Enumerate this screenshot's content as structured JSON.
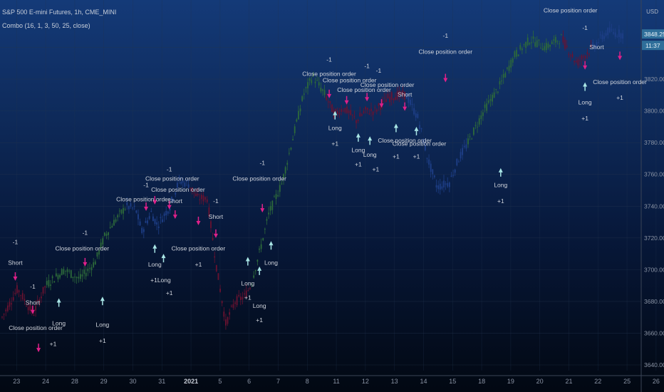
{
  "header": {
    "symbol_line": "S&P 500 E-mini Futures, 1h, CME_MINI",
    "study_line": "Combo (16, 1, 3, 50, 25, close)",
    "currency": "USD"
  },
  "price_badges": {
    "last_price": "3848.25",
    "countdown": "11:37"
  },
  "colors": {
    "bg_top": "#143a78",
    "bg_bottom": "#020812",
    "long_signal": "#a9e6e6",
    "short_signal": "#e0208a",
    "close_signal": "#e0208a",
    "candle_green": "#2d6a3a",
    "candle_blue": "#1e3f88",
    "candle_red": "#6a1230",
    "badge": "#2f6f9a"
  },
  "chart_data": {
    "type": "candlestick",
    "title": "S&P 500 E-mini Futures, 1h, CME_MINI",
    "ylim": [
      3640,
      3860
    ],
    "y_ticks": [
      "3640.00",
      "3660.00",
      "3680.00",
      "3700.00",
      "3720.00",
      "3740.00",
      "3760.00",
      "3780.00",
      "3800.00",
      "3820.00",
      "3840.00"
    ],
    "x_labels": [
      "23",
      "24",
      "28",
      "29",
      "30",
      "31",
      "2021",
      "5",
      "6",
      "7",
      "8",
      "11",
      "12",
      "13",
      "14",
      "15",
      "18",
      "19",
      "20",
      "21",
      "22",
      "25",
      "26"
    ],
    "bold_x_label": "2021",
    "grid": true,
    "price_path": [
      [
        0,
        3670
      ],
      [
        0.5,
        3688
      ],
      [
        1,
        3672
      ],
      [
        1.4,
        3690
      ],
      [
        2,
        3700
      ],
      [
        2.5,
        3694
      ],
      [
        3,
        3705
      ],
      [
        3.3,
        3721
      ],
      [
        3.6,
        3730
      ],
      [
        4,
        3740
      ],
      [
        4.3,
        3738
      ],
      [
        4.5,
        3724
      ],
      [
        4.8,
        3736
      ],
      [
        5,
        3728
      ],
      [
        5.4,
        3740
      ],
      [
        5.7,
        3756
      ],
      [
        6,
        3754
      ],
      [
        6.3,
        3745
      ],
      [
        6.6,
        3745
      ],
      [
        6.9,
        3702
      ],
      [
        7.2,
        3666
      ],
      [
        7.5,
        3680
      ],
      [
        7.8,
        3683
      ],
      [
        8,
        3690
      ],
      [
        8.3,
        3712
      ],
      [
        8.6,
        3736
      ],
      [
        9,
        3754
      ],
      [
        9.4,
        3786
      ],
      [
        9.7,
        3810
      ],
      [
        10,
        3822
      ],
      [
        10.4,
        3810
      ],
      [
        10.7,
        3798
      ],
      [
        11,
        3802
      ],
      [
        11.4,
        3794
      ],
      [
        11.7,
        3800
      ],
      [
        12,
        3800
      ],
      [
        12.4,
        3808
      ],
      [
        12.7,
        3810
      ],
      [
        13,
        3810
      ],
      [
        13.4,
        3795
      ],
      [
        13.7,
        3770
      ],
      [
        14,
        3752
      ],
      [
        14.4,
        3755
      ],
      [
        14.7,
        3770
      ],
      [
        15,
        3780
      ],
      [
        15.5,
        3800
      ],
      [
        16,
        3815
      ],
      [
        16.5,
        3835
      ],
      [
        17,
        3845
      ],
      [
        17.5,
        3840
      ],
      [
        18,
        3846
      ],
      [
        18.5,
        3830
      ],
      [
        19,
        3840
      ],
      [
        19.5,
        3850
      ],
      [
        20,
        3848.25
      ]
    ],
    "segment_colors": [
      {
        "from": 0,
        "to": 1.4,
        "color": "red"
      },
      {
        "from": 1.4,
        "to": 4,
        "color": "green"
      },
      {
        "from": 4,
        "to": 6,
        "color": "blue"
      },
      {
        "from": 6,
        "to": 8,
        "color": "red"
      },
      {
        "from": 8,
        "to": 10.4,
        "color": "green"
      },
      {
        "from": 10.4,
        "to": 13,
        "color": "red"
      },
      {
        "from": 13,
        "to": 15,
        "color": "blue"
      },
      {
        "from": 15,
        "to": 18,
        "color": "green"
      },
      {
        "from": 18,
        "to": 19,
        "color": "red"
      },
      {
        "from": 19,
        "to": 20,
        "color": "blue"
      }
    ],
    "annotations": [
      {
        "text": "-1",
        "x": 0.2,
        "price": 3716,
        "kind": "short"
      },
      {
        "text": "Short",
        "x": 0.2,
        "price": 3703,
        "kind": "short"
      },
      {
        "text": "-1",
        "x": 0.8,
        "price": 3688,
        "kind": "short"
      },
      {
        "text": "Short",
        "x": 0.8,
        "price": 3678,
        "kind": "short"
      },
      {
        "text": "Close position order",
        "x": 0.9,
        "price": 3662,
        "kind": "close"
      },
      {
        "text": "+1",
        "x": 1.5,
        "price": 3652,
        "kind": "close"
      },
      {
        "text": "Long",
        "x": 1.7,
        "price": 3665,
        "kind": "long"
      },
      {
        "text": "-1",
        "x": 2.6,
        "price": 3722,
        "kind": "short"
      },
      {
        "text": "Close position order",
        "x": 2.5,
        "price": 3712,
        "kind": "close"
      },
      {
        "text": "Long",
        "x": 3.2,
        "price": 3664,
        "kind": "long"
      },
      {
        "text": "+1",
        "x": 3.2,
        "price": 3654,
        "kind": "long"
      },
      {
        "text": "-1",
        "x": 4.7,
        "price": 3752,
        "kind": "short"
      },
      {
        "text": "Close position order",
        "x": 4.6,
        "price": 3743,
        "kind": "close"
      },
      {
        "text": "-1",
        "x": 5.5,
        "price": 3762,
        "kind": "short"
      },
      {
        "text": "Close position order",
        "x": 5.6,
        "price": 3756,
        "kind": "close"
      },
      {
        "text": "Close position order",
        "x": 5.8,
        "price": 3749,
        "kind": "close"
      },
      {
        "text": "Short",
        "x": 5.7,
        "price": 3742,
        "kind": "short"
      },
      {
        "text": "Long",
        "x": 5.0,
        "price": 3702,
        "kind": "long"
      },
      {
        "text": "+1Long",
        "x": 5.2,
        "price": 3692,
        "kind": "long"
      },
      {
        "text": "+1",
        "x": 5.5,
        "price": 3684,
        "kind": "long"
      },
      {
        "text": "Close position order",
        "x": 6.5,
        "price": 3712,
        "kind": "close"
      },
      {
        "text": "+1",
        "x": 6.5,
        "price": 3702,
        "kind": "close"
      },
      {
        "text": "-1",
        "x": 7.1,
        "price": 3742,
        "kind": "short"
      },
      {
        "text": "Short",
        "x": 7.1,
        "price": 3732,
        "kind": "short"
      },
      {
        "text": "-1",
        "x": 8.7,
        "price": 3766,
        "kind": "short"
      },
      {
        "text": "Close position order",
        "x": 8.6,
        "price": 3756,
        "kind": "close"
      },
      {
        "text": "Long",
        "x": 8.2,
        "price": 3690,
        "kind": "long"
      },
      {
        "text": "+1",
        "x": 8.2,
        "price": 3681,
        "kind": "long"
      },
      {
        "text": "Long",
        "x": 8.6,
        "price": 3676,
        "kind": "long"
      },
      {
        "text": "+1",
        "x": 8.6,
        "price": 3667,
        "kind": "long"
      },
      {
        "text": "Long",
        "x": 9.0,
        "price": 3703,
        "kind": "long"
      },
      {
        "text": "-1",
        "x": 11.0,
        "price": 3831,
        "kind": "short"
      },
      {
        "text": "Close position order",
        "x": 11.0,
        "price": 3822,
        "kind": "close"
      },
      {
        "text": "Close position order",
        "x": 11.7,
        "price": 3818,
        "kind": "close"
      },
      {
        "text": "-1",
        "x": 12.3,
        "price": 3827,
        "kind": "short"
      },
      {
        "text": "-1",
        "x": 12.7,
        "price": 3824,
        "kind": "short"
      },
      {
        "text": "Close position order",
        "x": 12.2,
        "price": 3812,
        "kind": "close"
      },
      {
        "text": "Close position order",
        "x": 13.0,
        "price": 3815,
        "kind": "close"
      },
      {
        "text": "Short",
        "x": 13.6,
        "price": 3809,
        "kind": "short"
      },
      {
        "text": "-1",
        "x": 15.0,
        "price": 3846,
        "kind": "short"
      },
      {
        "text": "Close position order",
        "x": 15.0,
        "price": 3836,
        "kind": "close"
      },
      {
        "text": "Long",
        "x": 11.2,
        "price": 3788,
        "kind": "long"
      },
      {
        "text": "+1",
        "x": 11.2,
        "price": 3778,
        "kind": "long"
      },
      {
        "text": "Long",
        "x": 12.0,
        "price": 3774,
        "kind": "long"
      },
      {
        "text": "+1",
        "x": 12.0,
        "price": 3765,
        "kind": "long"
      },
      {
        "text": "Long",
        "x": 12.4,
        "price": 3771,
        "kind": "long"
      },
      {
        "text": "+1",
        "x": 12.6,
        "price": 3762,
        "kind": "long"
      },
      {
        "text": "Close position order",
        "x": 13.6,
        "price": 3780,
        "kind": "close"
      },
      {
        "text": "+1",
        "x": 13.3,
        "price": 3770,
        "kind": "close"
      },
      {
        "text": "Close position order",
        "x": 14.1,
        "price": 3778,
        "kind": "close"
      },
      {
        "text": "+1",
        "x": 14.0,
        "price": 3770,
        "kind": "close"
      },
      {
        "text": "Long",
        "x": 16.9,
        "price": 3752,
        "kind": "long"
      },
      {
        "text": "+1",
        "x": 16.9,
        "price": 3742,
        "kind": "long"
      },
      {
        "text": "Close position order",
        "x": 19.3,
        "price": 3862,
        "kind": "close"
      },
      {
        "text": "-1",
        "x": 19.8,
        "price": 3851,
        "kind": "short"
      },
      {
        "text": "Short",
        "x": 20.2,
        "price": 3839,
        "kind": "short"
      },
      {
        "text": "Long",
        "x": 19.8,
        "price": 3804,
        "kind": "long"
      },
      {
        "text": "+1",
        "x": 19.8,
        "price": 3794,
        "kind": "long"
      },
      {
        "text": "Close position order",
        "x": 21.0,
        "price": 3817,
        "kind": "close"
      },
      {
        "text": "+1",
        "x": 21.0,
        "price": 3807,
        "kind": "close"
      }
    ],
    "arrows": [
      {
        "x": 0.2,
        "price": 3693,
        "dir": "down"
      },
      {
        "x": 0.8,
        "price": 3672,
        "dir": "down"
      },
      {
        "x": 1.0,
        "price": 3648,
        "dir": "down"
      },
      {
        "x": 1.7,
        "price": 3682,
        "dir": "up"
      },
      {
        "x": 2.6,
        "price": 3702,
        "dir": "down"
      },
      {
        "x": 3.2,
        "price": 3683,
        "dir": "up"
      },
      {
        "x": 4.7,
        "price": 3737,
        "dir": "down"
      },
      {
        "x": 5.0,
        "price": 3741,
        "dir": "down"
      },
      {
        "x": 5.5,
        "price": 3738,
        "dir": "down"
      },
      {
        "x": 5.7,
        "price": 3732,
        "dir": "down"
      },
      {
        "x": 5.0,
        "price": 3716,
        "dir": "up"
      },
      {
        "x": 5.3,
        "price": 3710,
        "dir": "up"
      },
      {
        "x": 6.5,
        "price": 3728,
        "dir": "down"
      },
      {
        "x": 7.1,
        "price": 3720,
        "dir": "down"
      },
      {
        "x": 8.2,
        "price": 3708,
        "dir": "up"
      },
      {
        "x": 8.6,
        "price": 3702,
        "dir": "up"
      },
      {
        "x": 8.7,
        "price": 3736,
        "dir": "down"
      },
      {
        "x": 9.0,
        "price": 3718,
        "dir": "up"
      },
      {
        "x": 11.0,
        "price": 3808,
        "dir": "down"
      },
      {
        "x": 11.6,
        "price": 3804,
        "dir": "down"
      },
      {
        "x": 12.3,
        "price": 3806,
        "dir": "down"
      },
      {
        "x": 12.8,
        "price": 3802,
        "dir": "down"
      },
      {
        "x": 13.6,
        "price": 3800,
        "dir": "down"
      },
      {
        "x": 15.0,
        "price": 3818,
        "dir": "down"
      },
      {
        "x": 11.2,
        "price": 3800,
        "dir": "up"
      },
      {
        "x": 12.0,
        "price": 3786,
        "dir": "up"
      },
      {
        "x": 12.4,
        "price": 3784,
        "dir": "up"
      },
      {
        "x": 13.3,
        "price": 3792,
        "dir": "up"
      },
      {
        "x": 14.0,
        "price": 3790,
        "dir": "up"
      },
      {
        "x": 16.9,
        "price": 3764,
        "dir": "up"
      },
      {
        "x": 19.8,
        "price": 3826,
        "dir": "down"
      },
      {
        "x": 19.8,
        "price": 3818,
        "dir": "up"
      },
      {
        "x": 21.0,
        "price": 3832,
        "dir": "down"
      }
    ]
  }
}
